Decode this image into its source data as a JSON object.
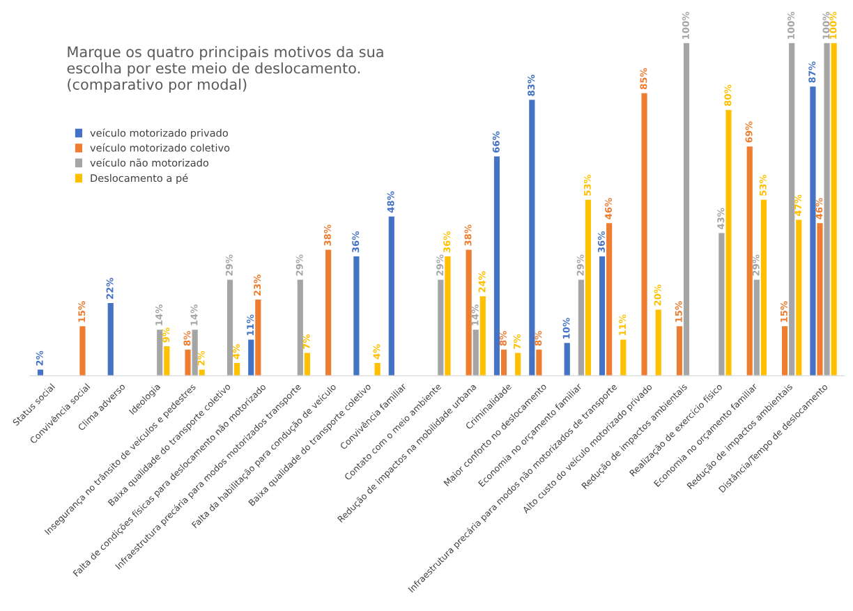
{
  "chart_data": {
    "type": "bar",
    "title": "Marque os quatro principais motivos da sua\nescolha por este meio de deslocamento.\n(comparativo por modal)",
    "categories": [
      "Status social",
      "Convivência social",
      "Clima adverso",
      "Ideologia",
      "Insegurança no trânsito de veículos e pedestres",
      "Baixa qualidade do transporte coletivo",
      "Falta de condições físicas para deslocamento não motorizado",
      "Infraestrutura precária para modos motorizados transporte",
      "Falta da habilitação para condução de veículo",
      "Baixa qualidade do transporte coletivo",
      "Convivência familiar",
      "Contato com o meio ambiente",
      "Redução de impactos na mobilidade urbana",
      "Criminalidade",
      "Maior conforto no deslocamento",
      "Economia no orçamento familiar",
      "Infraestrutura precária para modos não motorizados de transporte",
      "Alto custo do veículo motorizado privado",
      "Redução de impactos ambientais",
      "Realização de exercício físico",
      "Economia no orçamento familiar",
      "Redução de impactos ambientais",
      "Distância/Tempo de deslocamento"
    ],
    "series": [
      {
        "name": "veículo motorizado privado",
        "color": "#4472c4",
        "values": [
          2,
          null,
          22,
          null,
          null,
          null,
          11,
          null,
          null,
          36,
          48,
          null,
          null,
          66,
          83,
          10,
          36,
          null,
          null,
          null,
          null,
          null,
          87
        ],
        "value_labels": [
          "2%",
          null,
          "22%",
          null,
          null,
          null,
          "11%",
          null,
          null,
          "36%",
          "48%",
          null,
          null,
          "66%",
          "83%",
          "10%",
          "36%",
          null,
          null,
          null,
          null,
          null,
          "87%"
        ]
      },
      {
        "name": "veículo motorizado coletivo",
        "color": "#ed7d31",
        "values": [
          null,
          15,
          null,
          null,
          8,
          null,
          23,
          null,
          38,
          null,
          null,
          null,
          38,
          8,
          8,
          null,
          46,
          85,
          15,
          null,
          69,
          15,
          46
        ],
        "value_labels": [
          null,
          "15%",
          null,
          null,
          "8%",
          null,
          "23%",
          null,
          "38%",
          null,
          null,
          null,
          "38%",
          "8%",
          "8%",
          null,
          "46%",
          "85%",
          "15%",
          null,
          "69%",
          "15%",
          "46%"
        ]
      },
      {
        "name": "veículo não motorizado",
        "color": "#a5a5a5",
        "values": [
          null,
          null,
          null,
          14,
          14,
          29,
          null,
          29,
          null,
          null,
          null,
          29,
          14,
          null,
          null,
          29,
          null,
          null,
          100,
          43,
          29,
          100,
          100
        ],
        "value_labels": [
          null,
          null,
          null,
          "14%",
          "14%",
          "29%",
          null,
          "29%",
          null,
          null,
          null,
          "29%",
          "14%",
          null,
          null,
          "29%",
          null,
          null,
          "100%",
          "43%",
          "29%",
          "100%",
          "100%"
        ]
      },
      {
        "name": "Deslocamento a pé",
        "color": "#ffc000",
        "values": [
          null,
          null,
          null,
          9,
          2,
          4,
          null,
          7,
          null,
          4,
          null,
          36,
          24,
          7,
          null,
          53,
          11,
          20,
          null,
          80,
          53,
          47,
          100
        ],
        "value_labels": [
          null,
          null,
          null,
          "9%",
          "2%",
          "4%",
          null,
          "7%",
          null,
          "4%",
          null,
          "36%",
          "24%",
          "7%",
          null,
          "53%",
          "11%",
          "20%",
          null,
          "80%",
          "53%",
          "47%",
          "100%"
        ]
      }
    ],
    "legend": "top left",
    "grid": false,
    "tick_labels": "x"
  }
}
